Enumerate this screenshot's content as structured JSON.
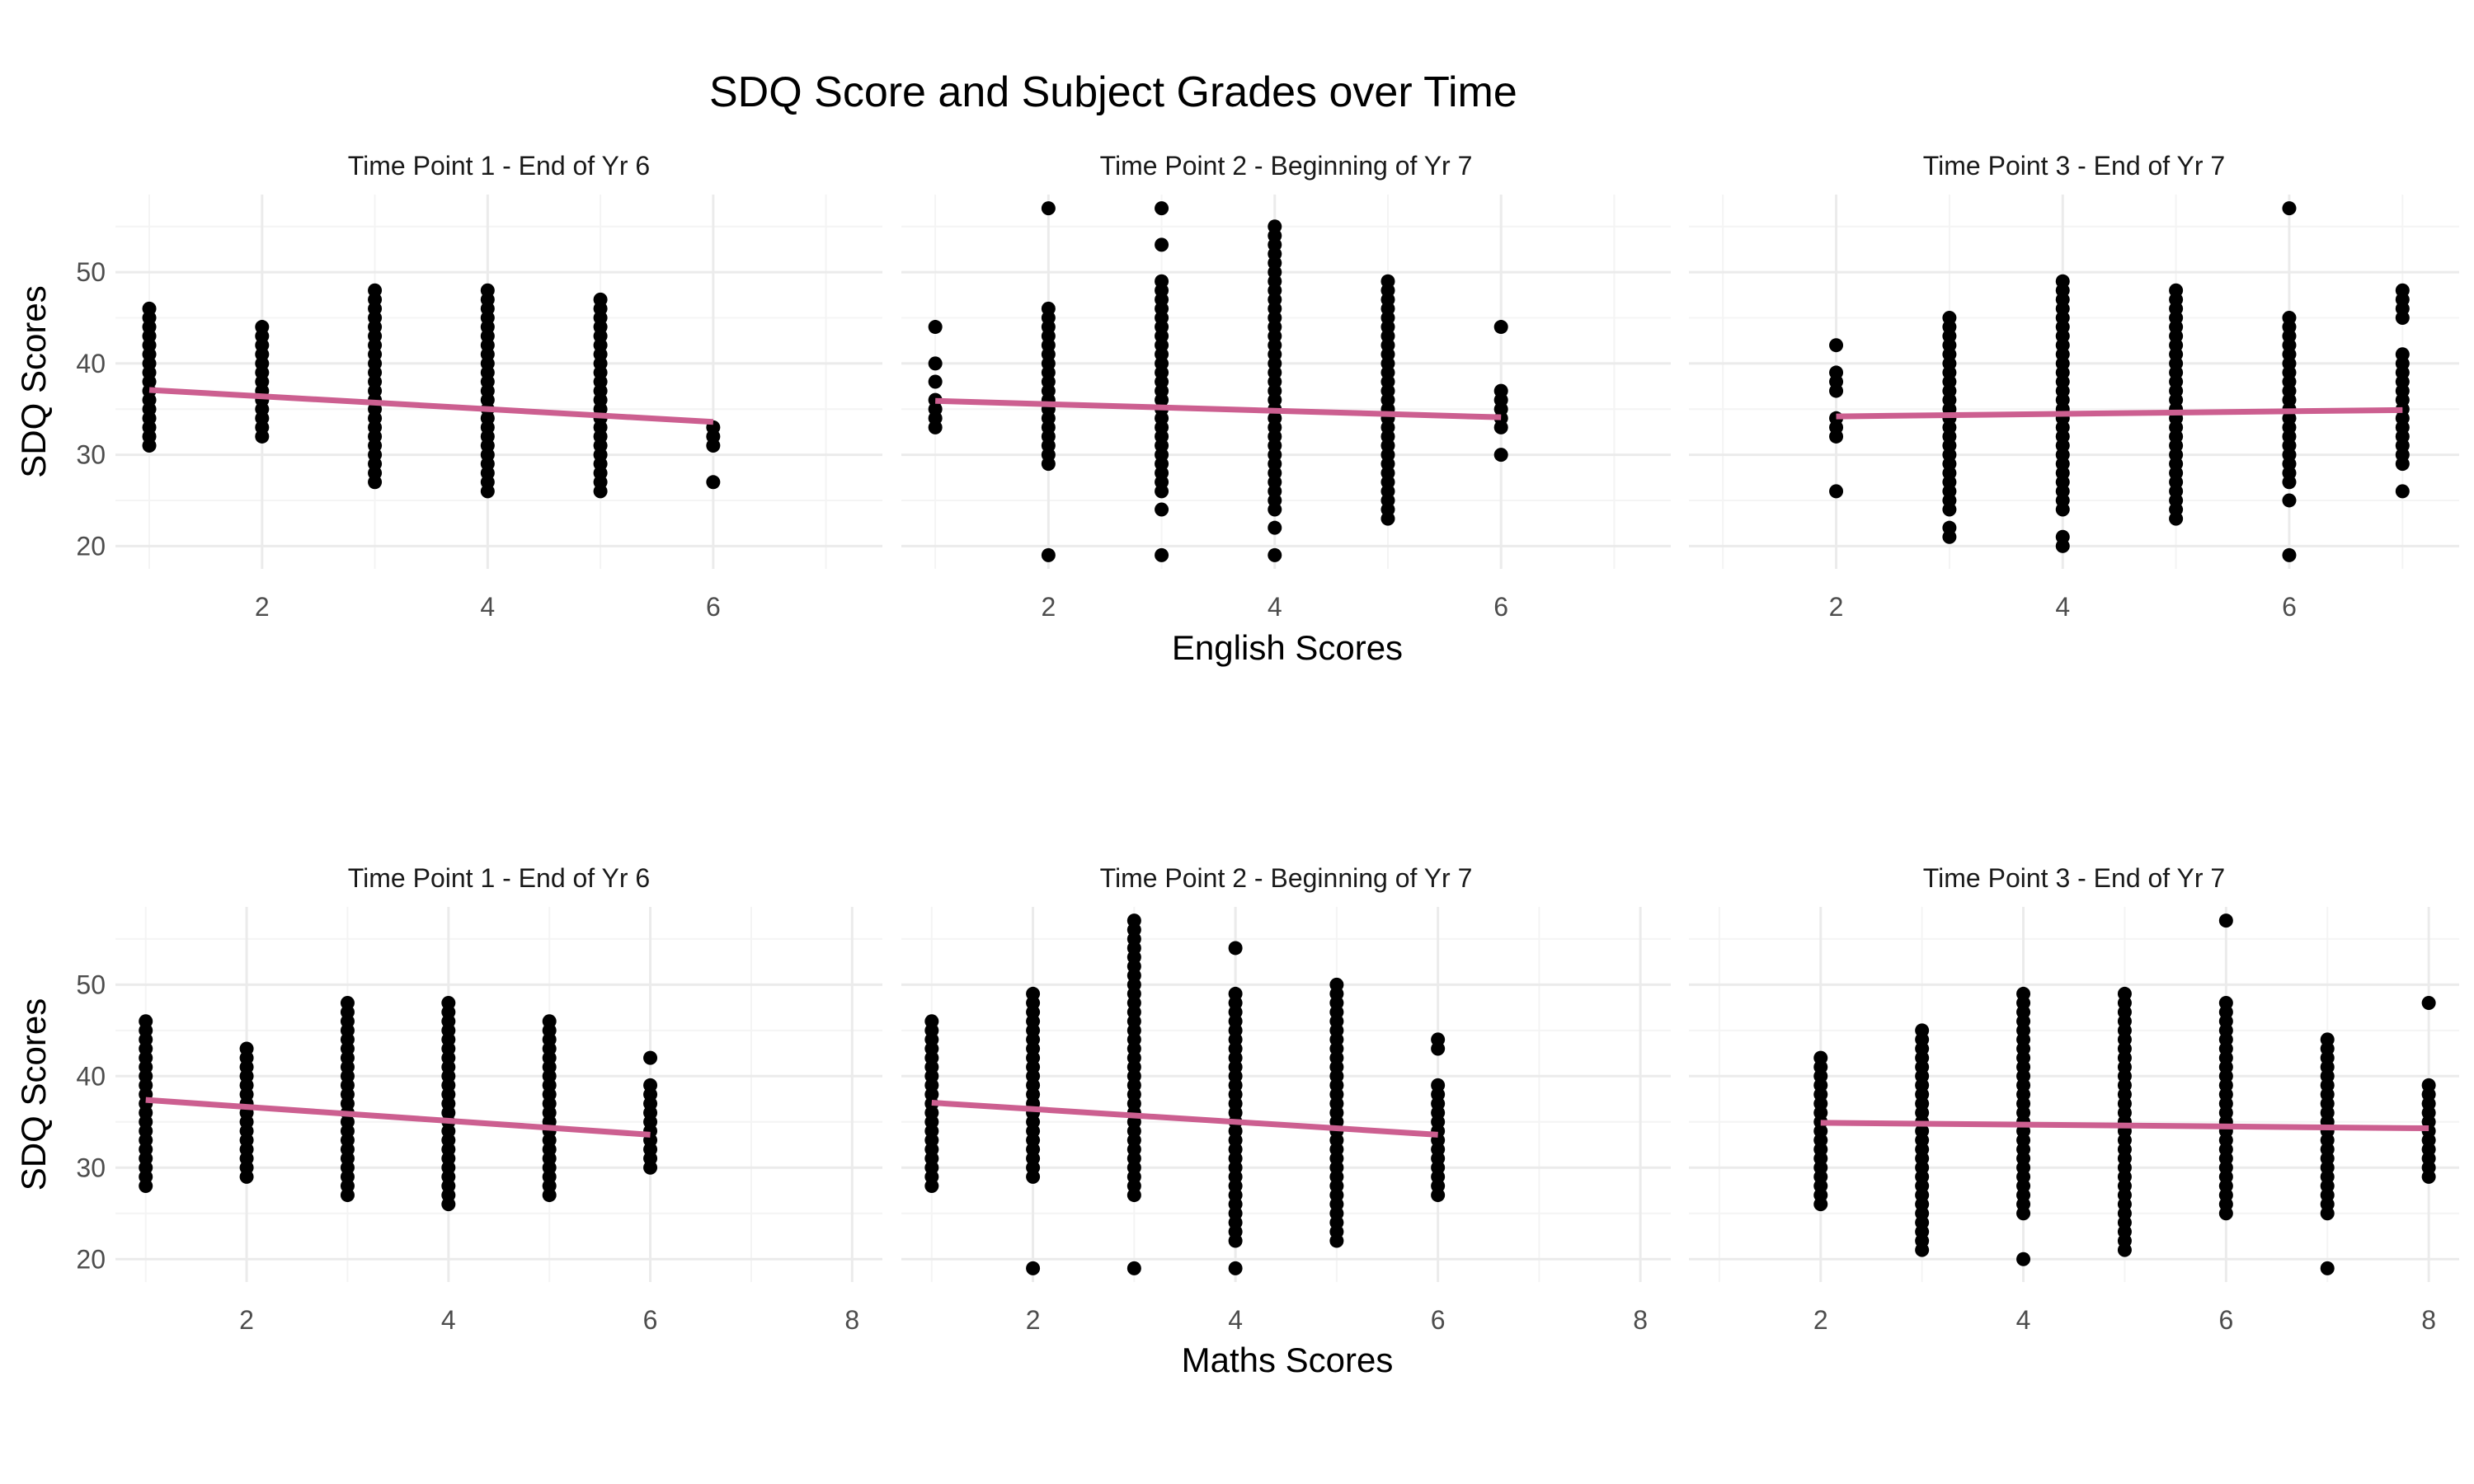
{
  "title": "SDQ Score and Subject Grades over Time",
  "colors": {
    "trend": "#cc5f90",
    "points": "#000000",
    "grid": "#ebebeb"
  },
  "chart_data": [
    {
      "type": "scatter",
      "row": "english",
      "panels": [
        {
          "title": "Time Point 1 - End of Yr 6",
          "xlim": [
            0.7,
            7.5
          ],
          "ylim": [
            17.5,
            58.5
          ],
          "x_ticks": [
            2,
            4,
            6
          ],
          "y_ticks": [
            20,
            30,
            40,
            50
          ],
          "trend": {
            "x": [
              1,
              6
            ],
            "y": [
              37.1,
              33.6
            ]
          },
          "points": [
            [
              1,
              31,
              46
            ],
            [
              2,
              32,
              44
            ],
            [
              3,
              27,
              48
            ],
            [
              4,
              26,
              48
            ],
            [
              5,
              26,
              47
            ],
            [
              6,
              31,
              33
            ],
            [
              6,
              27,
              27
            ]
          ]
        },
        {
          "title": "Time Point 2 - Beginning of Yr 7",
          "xlim": [
            0.7,
            7.5
          ],
          "ylim": [
            17.5,
            58.5
          ],
          "x_ticks": [
            2,
            4,
            6
          ],
          "y_ticks": [
            20,
            30,
            40,
            50
          ],
          "trend": {
            "x": [
              1,
              6
            ],
            "y": [
              35.9,
              34.1
            ]
          },
          "points": [
            [
              1,
              33,
              36
            ],
            [
              1,
              38,
              38
            ],
            [
              1,
              40,
              40
            ],
            [
              1,
              44,
              44
            ],
            [
              2,
              29,
              46
            ],
            [
              2,
              57,
              57
            ],
            [
              2,
              19,
              19
            ],
            [
              3,
              26,
              49
            ],
            [
              3,
              53,
              53
            ],
            [
              3,
              57,
              57
            ],
            [
              3,
              24,
              24
            ],
            [
              3,
              19,
              19
            ],
            [
              4,
              24,
              48
            ],
            [
              4,
              49,
              55
            ],
            [
              4,
              22,
              22
            ],
            [
              4,
              19,
              19
            ],
            [
              5,
              25,
              49
            ],
            [
              5,
              23,
              24
            ],
            [
              6,
              33,
              37
            ],
            [
              6,
              44,
              44
            ],
            [
              6,
              30,
              30
            ]
          ]
        },
        {
          "title": "Time Point 3 - End of Yr 7",
          "xlim": [
            0.7,
            7.5
          ],
          "ylim": [
            17.5,
            58.5
          ],
          "x_ticks": [
            2,
            4,
            6
          ],
          "y_ticks": [
            20,
            30,
            40,
            50
          ],
          "trend": {
            "x": [
              2,
              7
            ],
            "y": [
              34.2,
              34.9
            ]
          },
          "points": [
            [
              2,
              32,
              34
            ],
            [
              2,
              37,
              39
            ],
            [
              2,
              42,
              42
            ],
            [
              2,
              26,
              26
            ],
            [
              3,
              24,
              45
            ],
            [
              3,
              21,
              22
            ],
            [
              4,
              24,
              49
            ],
            [
              4,
              20,
              21
            ],
            [
              5,
              23,
              48
            ],
            [
              6,
              27,
              45
            ],
            [
              6,
              25,
              25
            ],
            [
              6,
              57,
              57
            ],
            [
              6,
              19,
              19
            ],
            [
              7,
              29,
              41
            ],
            [
              7,
              45,
              48
            ],
            [
              7,
              26,
              26
            ]
          ]
        }
      ],
      "xlabel": "English Scores",
      "ylabel": "SDQ Scores"
    },
    {
      "type": "scatter",
      "row": "maths",
      "panels": [
        {
          "title": "Time Point 1 - End of Yr 6",
          "xlim": [
            0.7,
            8.3
          ],
          "ylim": [
            17.5,
            58.5
          ],
          "x_ticks": [
            2,
            4,
            6,
            8
          ],
          "y_ticks": [
            20,
            30,
            40,
            50
          ],
          "trend": {
            "x": [
              1,
              6
            ],
            "y": [
              37.4,
              33.6
            ]
          },
          "points": [
            [
              1,
              28,
              46
            ],
            [
              2,
              29,
              43
            ],
            [
              3,
              27,
              48
            ],
            [
              4,
              26,
              48
            ],
            [
              5,
              27,
              46
            ],
            [
              6,
              30,
              39
            ],
            [
              6,
              42,
              42
            ]
          ]
        },
        {
          "title": "Time Point 2 - Beginning of Yr 7",
          "xlim": [
            0.7,
            8.3
          ],
          "ylim": [
            17.5,
            58.5
          ],
          "x_ticks": [
            2,
            4,
            6,
            8
          ],
          "y_ticks": [
            20,
            30,
            40,
            50
          ],
          "trend": {
            "x": [
              1,
              6
            ],
            "y": [
              37.1,
              33.6
            ]
          },
          "points": [
            [
              1,
              28,
              46
            ],
            [
              2,
              29,
              49
            ],
            [
              2,
              19,
              19
            ],
            [
              3,
              27,
              57
            ],
            [
              3,
              19,
              19
            ],
            [
              4,
              22,
              49
            ],
            [
              4,
              54,
              54
            ],
            [
              4,
              19,
              19
            ],
            [
              5,
              22,
              50
            ],
            [
              6,
              27,
              39
            ],
            [
              6,
              43,
              44
            ]
          ]
        },
        {
          "title": "Time Point 3 - End of Yr 7",
          "xlim": [
            0.7,
            8.3
          ],
          "ylim": [
            17.5,
            58.5
          ],
          "x_ticks": [
            2,
            4,
            6,
            8
          ],
          "y_ticks": [
            20,
            30,
            40,
            50
          ],
          "trend": {
            "x": [
              2,
              8
            ],
            "y": [
              34.9,
              34.3
            ]
          },
          "points": [
            [
              2,
              26,
              42
            ],
            [
              3,
              21,
              45
            ],
            [
              4,
              25,
              49
            ],
            [
              4,
              20,
              20
            ],
            [
              5,
              21,
              49
            ],
            [
              6,
              25,
              48
            ],
            [
              6,
              57,
              57
            ],
            [
              7,
              25,
              44
            ],
            [
              7,
              19,
              19
            ],
            [
              8,
              29,
              39
            ],
            [
              8,
              48,
              48
            ]
          ]
        }
      ],
      "xlabel": "Maths Scores",
      "ylabel": "SDQ Scores"
    }
  ]
}
